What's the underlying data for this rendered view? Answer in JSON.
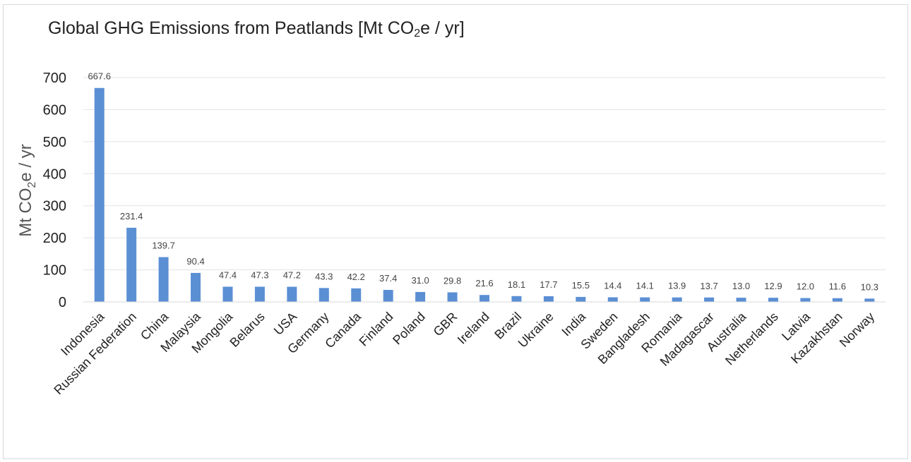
{
  "chart_data": {
    "type": "bar",
    "title_main": "Global GHG Emissions from Peatlands [Mt CO",
    "title_sub": "2",
    "title_tail": "e / yr]",
    "ylabel_main": "Mt CO",
    "ylabel_sub": "2",
    "ylabel_tail": "e / yr",
    "ylim": [
      0,
      700
    ],
    "yticks": [
      0,
      100,
      200,
      300,
      400,
      500,
      600,
      700
    ],
    "grid": true,
    "bar_color": "#5b8fd4",
    "categories": [
      "Indonesia",
      "Russian Federation",
      "China",
      "Malaysia",
      "Mongolia",
      "Belarus",
      "USA",
      "Germany",
      "Canada",
      "Finland",
      "Poland",
      "GBR",
      "Ireland",
      "Brazil",
      "Ukraine",
      "India",
      "Sweden",
      "Bangladesh",
      "Romania",
      "Madagascar",
      "Australia",
      "Netherlands",
      "Latvia",
      "Kazakhstan",
      "Norway"
    ],
    "values": [
      667.6,
      231.4,
      139.7,
      90.4,
      47.4,
      47.3,
      47.2,
      43.3,
      42.2,
      37.4,
      31.0,
      29.8,
      21.6,
      18.1,
      17.7,
      15.5,
      14.4,
      14.1,
      13.9,
      13.7,
      13.0,
      12.9,
      12.0,
      11.6,
      10.3
    ],
    "value_labels": [
      "667.6",
      "231.4",
      "139.7",
      "90.4",
      "47.4",
      "47.3",
      "47.2",
      "43.3",
      "42.2",
      "37.4",
      "31.0",
      "29.8",
      "21.6",
      "18.1",
      "17.7",
      "15.5",
      "14.4",
      "14.1",
      "13.9",
      "13.7",
      "13.0",
      "12.9",
      "12.0",
      "11.6",
      "10.3"
    ]
  }
}
